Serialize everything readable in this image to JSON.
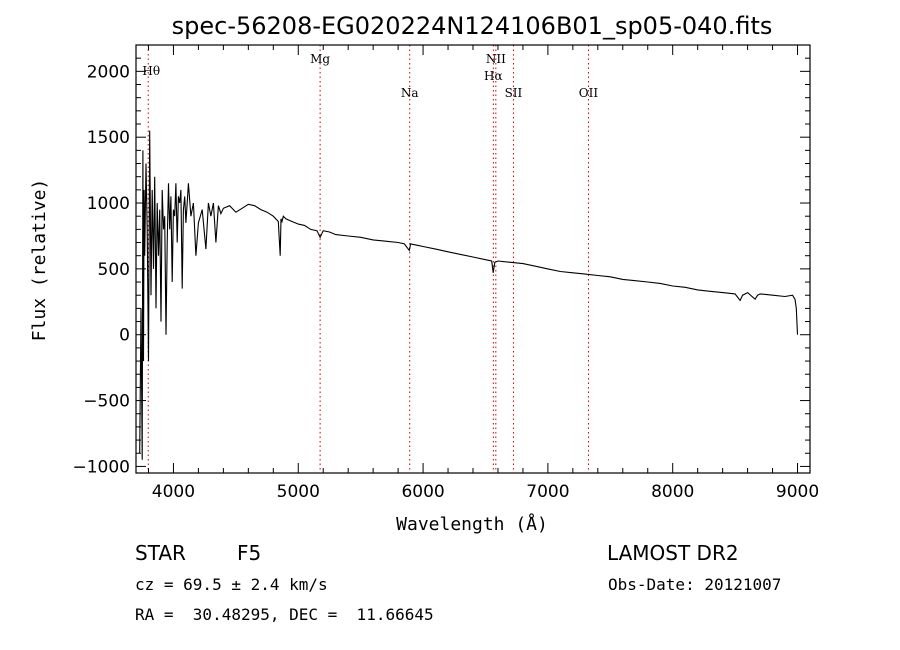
{
  "chart_data": {
    "type": "line",
    "title": "spec-56208-EG020224N124106B01_sp05-040.fits",
    "xlabel": "Wavelength (Å)",
    "ylabel": "Flux (relative)",
    "xlim": [
      3700,
      9100
    ],
    "ylim": [
      -1050,
      2200
    ],
    "grid": false,
    "x_ticks": [
      4000,
      5000,
      6000,
      7000,
      8000,
      9000
    ],
    "y_ticks": [
      -1000,
      -500,
      0,
      500,
      1000,
      1500,
      2000
    ],
    "x_tick_labels": [
      "4000",
      "5000",
      "6000",
      "7000",
      "8000",
      "9000"
    ],
    "y_tick_labels": [
      "−1000",
      "−500",
      "0",
      "500",
      "1000",
      "1500",
      "2000"
    ],
    "series": [
      {
        "x": [
          3730,
          3740,
          3750,
          3755,
          3760,
          3765,
          3770,
          3780,
          3790,
          3800,
          3810,
          3820,
          3830,
          3840,
          3850,
          3860,
          3870,
          3880,
          3890,
          3900,
          3910,
          3920,
          3930,
          3940,
          3950,
          3960,
          3970,
          3980,
          3990,
          4000,
          4010,
          4020,
          4030,
          4040,
          4050,
          4060,
          4070,
          4080,
          4090,
          4100,
          4110,
          4120,
          4140,
          4160,
          4180,
          4200,
          4230,
          4260,
          4280,
          4300,
          4320,
          4340,
          4360,
          4380,
          4400,
          4450,
          4500,
          4550,
          4600,
          4650,
          4700,
          4750,
          4800,
          4840,
          4855,
          4862,
          4870,
          4880,
          4900,
          4950,
          5000,
          5050,
          5100,
          5150,
          5175,
          5200,
          5250,
          5300,
          5400,
          5500,
          5600,
          5700,
          5800,
          5850,
          5890,
          5900,
          5950,
          6000,
          6100,
          6200,
          6300,
          6400,
          6500,
          6550,
          6562,
          6575,
          6600,
          6700,
          6800,
          6900,
          7000,
          7100,
          7200,
          7300,
          7400,
          7500,
          7600,
          7700,
          7800,
          7900,
          8000,
          8100,
          8200,
          8300,
          8400,
          8500,
          8540,
          8560,
          8600,
          8660,
          8680,
          8700,
          8800,
          8900,
          8960,
          8980,
          8990,
          9000
        ],
        "values": [
          -900,
          200,
          -950,
          1400,
          -200,
          1100,
          600,
          1300,
          800,
          -200,
          1550,
          300,
          1100,
          500,
          1200,
          200,
          1000,
          600,
          950,
          100,
          1100,
          800,
          900,
          0,
          700,
          1150,
          800,
          1050,
          400,
          950,
          900,
          1150,
          700,
          1050,
          1000,
          1100,
          350,
          950,
          1050,
          850,
          1000,
          1150,
          900,
          1000,
          600,
          850,
          950,
          650,
          1000,
          900,
          1000,
          700,
          980,
          920,
          960,
          980,
          930,
          960,
          990,
          980,
          950,
          930,
          900,
          860,
          600,
          880,
          860,
          900,
          880,
          860,
          840,
          830,
          800,
          790,
          740,
          790,
          780,
          760,
          750,
          740,
          720,
          710,
          700,
          690,
          640,
          690,
          680,
          670,
          650,
          630,
          610,
          590,
          570,
          560,
          470,
          550,
          560,
          550,
          540,
          520,
          500,
          480,
          470,
          460,
          450,
          440,
          420,
          410,
          400,
          390,
          370,
          360,
          340,
          330,
          320,
          310,
          260,
          300,
          320,
          270,
          300,
          310,
          300,
          290,
          300,
          270,
          200,
          0
        ]
      }
    ],
    "line_markers": [
      {
        "label": "Hθ",
        "x": 3798
      },
      {
        "label": "Mg",
        "x": 5175
      },
      {
        "label": "Na",
        "x": 5893
      },
      {
        "label": "NII",
        "x": 6583
      },
      {
        "label": "Hα",
        "x": 6563
      },
      {
        "label": "SII",
        "x": 6724
      },
      {
        "label": "OII",
        "x": 7325
      }
    ],
    "colors": {
      "spectrum": "#000000",
      "markers": "#d00000",
      "axes": "#000000"
    }
  },
  "info": {
    "object_class": "STAR",
    "subclass": "F5",
    "survey": "LAMOST DR2",
    "cz": "cz = 69.5 ± 2.4 km/s",
    "obs_date": "Obs-Date: 20121007",
    "coords": "RA =  30.48295, DEC =  11.66645"
  }
}
